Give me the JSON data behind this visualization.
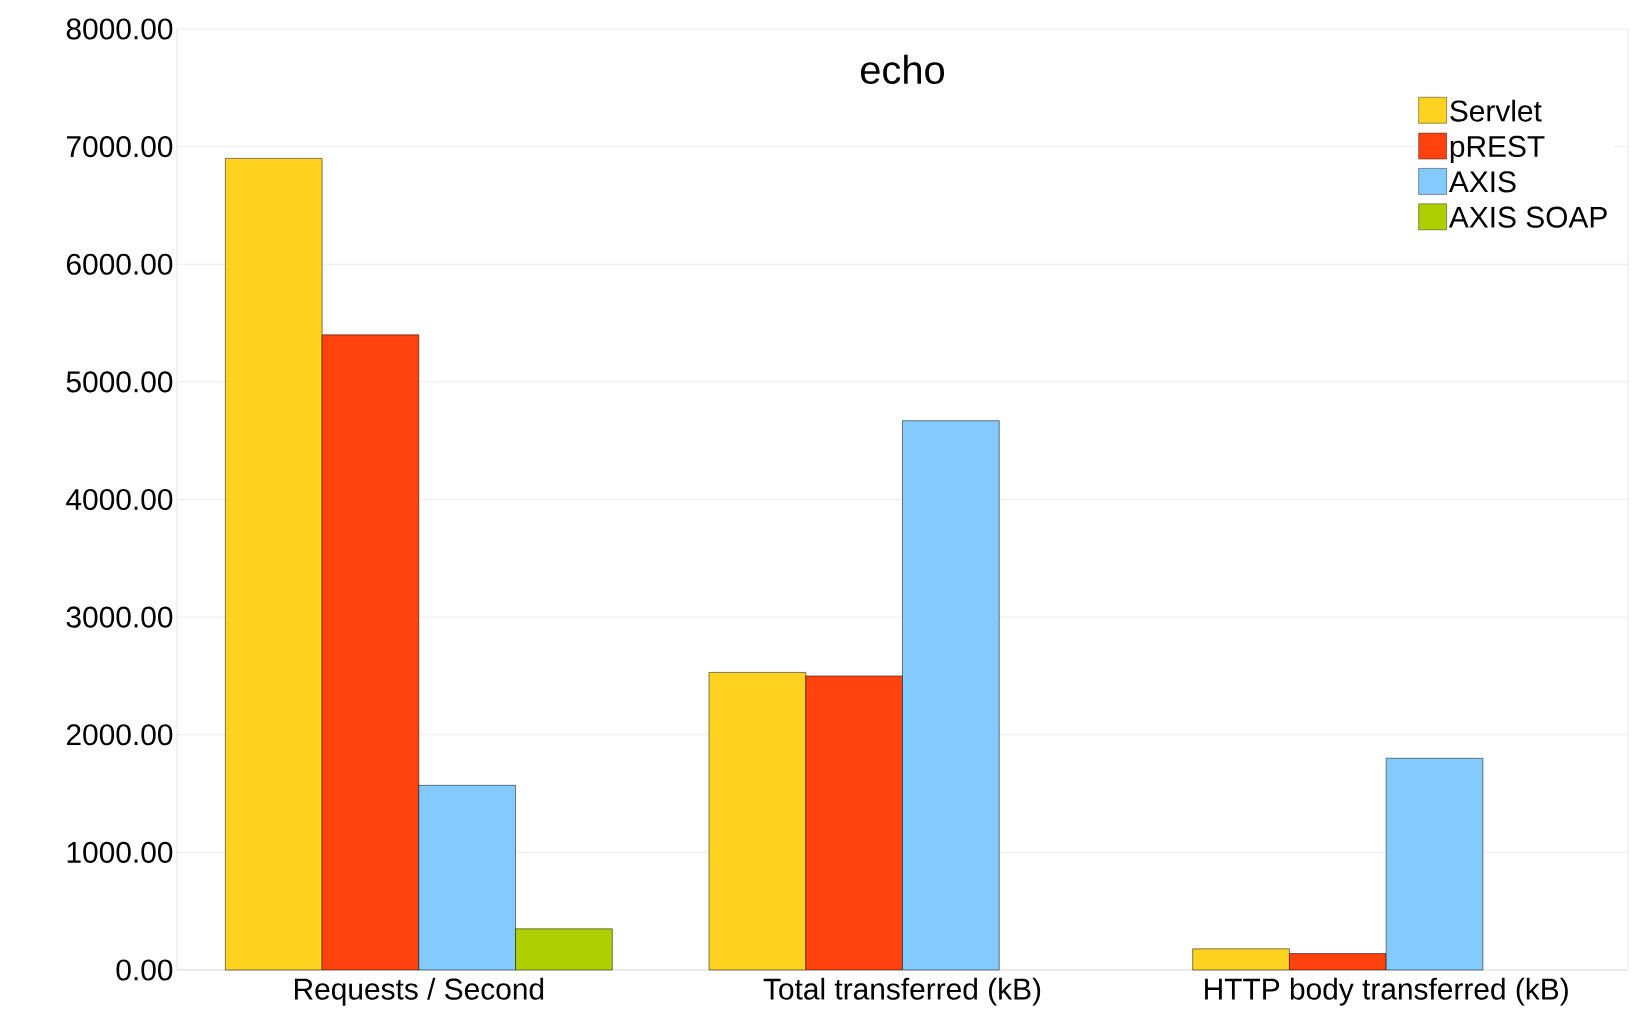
{
  "chart_data": {
    "type": "bar",
    "title": "echo",
    "categories": [
      "Requests / Second",
      "Total transferred (kB)",
      "HTTP body transferred (kB)"
    ],
    "series": [
      {
        "name": "Servlet",
        "color": "#ffd320",
        "values": [
          6900,
          2530,
          180
        ]
      },
      {
        "name": "pREST",
        "color": "#ff420e",
        "values": [
          5400,
          2500,
          140
        ]
      },
      {
        "name": "AXIS",
        "color": "#83caff",
        "values": [
          1570,
          4670,
          1800
        ]
      },
      {
        "name": "AXIS SOAP",
        "color": "#aecf00",
        "values": [
          350,
          null,
          null
        ]
      }
    ],
    "ylim": [
      0,
      8000
    ],
    "yticks": [
      {
        "value": 0,
        "label": "0.00"
      },
      {
        "value": 1000,
        "label": "1000.00"
      },
      {
        "value": 2000,
        "label": "2000.00"
      },
      {
        "value": 3000,
        "label": "3000.00"
      },
      {
        "value": 4000,
        "label": "4000.00"
      },
      {
        "value": 5000,
        "label": "5000.00"
      },
      {
        "value": 6000,
        "label": "6000.00"
      },
      {
        "value": 7000,
        "label": "7000.00"
      },
      {
        "value": 8000,
        "label": "8000.00"
      }
    ],
    "grid": "y",
    "legend": "top right"
  }
}
